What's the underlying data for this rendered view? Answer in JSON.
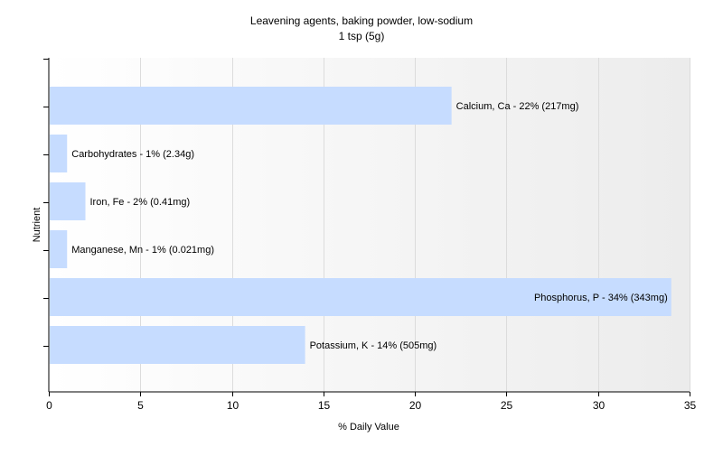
{
  "chart_data": {
    "type": "bar",
    "orientation": "horizontal",
    "title": "Leavening agents, baking powder, low-sodium",
    "subtitle": "1 tsp (5g)",
    "xlabel": "% Daily Value",
    "ylabel": "Nutrient",
    "xlim": [
      0,
      35
    ],
    "xticks": [
      0,
      5,
      10,
      15,
      20,
      25,
      30,
      35
    ],
    "grid": true,
    "legend": "none",
    "bar_color": "#c6dcff",
    "categories": [
      "Calcium, Ca",
      "Carbohydrates",
      "Iron, Fe",
      "Manganese, Mn",
      "Phosphorus, P",
      "Potassium, K"
    ],
    "values": [
      22,
      1,
      2,
      1,
      34,
      14
    ],
    "data_labels": [
      "Calcium, Ca - 22% (217mg)",
      "Carbohydrates - 1% (2.34g)",
      "Iron, Fe - 2% (0.41mg)",
      "Manganese, Mn - 1% (0.021mg)",
      "Phosphorus, P - 34% (343mg)",
      "Potassium, K - 14% (505mg)"
    ]
  }
}
